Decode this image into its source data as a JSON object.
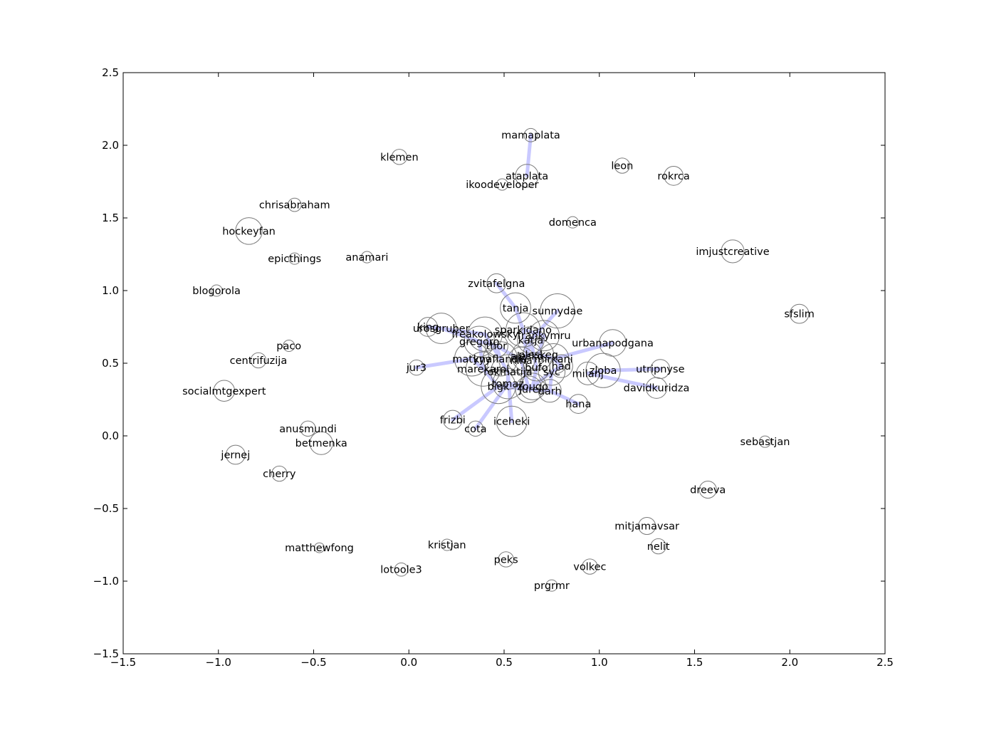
{
  "chart_data": {
    "type": "scatter",
    "title": "",
    "xlabel": "",
    "ylabel": "",
    "xlim": [
      -1.5,
      2.5
    ],
    "ylim": [
      -1.5,
      2.5
    ],
    "x_ticks": [
      -1.5,
      -1.0,
      -0.5,
      0.0,
      0.5,
      1.0,
      1.5,
      2.0,
      2.5
    ],
    "y_ticks": [
      -1.5,
      -1.0,
      -0.5,
      0.0,
      0.5,
      1.0,
      1.5,
      2.0,
      2.5
    ],
    "x_tick_labels": [
      "−1.5",
      "−1.0",
      "−0.5",
      "0.0",
      "0.5",
      "1.0",
      "1.5",
      "2.0",
      "2.5"
    ],
    "y_tick_labels": [
      "−1.5",
      "−1.0",
      "−0.5",
      "0.0",
      "0.5",
      "1.0",
      "1.5",
      "2.0",
      "2.5"
    ],
    "grid": false,
    "colors": {
      "node_stroke": "#7a7a7a",
      "edge": "#c9c9ff",
      "axes": "#000000",
      "background": "#ffffff"
    },
    "nodes": [
      {
        "label": "mamaplata",
        "x": 0.64,
        "y": 2.07,
        "size": 0.035
      },
      {
        "label": "klemen",
        "x": -0.05,
        "y": 1.92,
        "size": 0.04
      },
      {
        "label": "ataplata",
        "x": 0.62,
        "y": 1.79,
        "size": 0.06
      },
      {
        "label": "ikoodeveloper",
        "x": 0.49,
        "y": 1.73,
        "size": 0.03
      },
      {
        "label": "leon",
        "x": 1.12,
        "y": 1.86,
        "size": 0.04
      },
      {
        "label": "rokrca",
        "x": 1.39,
        "y": 1.79,
        "size": 0.05
      },
      {
        "label": "chrisabraham",
        "x": -0.6,
        "y": 1.59,
        "size": 0.035
      },
      {
        "label": "domenca",
        "x": 0.86,
        "y": 1.47,
        "size": 0.03
      },
      {
        "label": "hockeyfan",
        "x": -0.84,
        "y": 1.41,
        "size": 0.07
      },
      {
        "label": "epicthings",
        "x": -0.6,
        "y": 1.22,
        "size": 0.03
      },
      {
        "label": "anamari",
        "x": -0.22,
        "y": 1.23,
        "size": 0.03
      },
      {
        "label": "imjustcreative",
        "x": 1.7,
        "y": 1.27,
        "size": 0.06
      },
      {
        "label": "blogorola",
        "x": -1.01,
        "y": 1.0,
        "size": 0.03
      },
      {
        "label": "zvitafelgna",
        "x": 0.46,
        "y": 1.05,
        "size": 0.05
      },
      {
        "label": "tanja",
        "x": 0.56,
        "y": 0.88,
        "size": 0.08
      },
      {
        "label": "sunnydae",
        "x": 0.78,
        "y": 0.86,
        "size": 0.09
      },
      {
        "label": "sfslim",
        "x": 2.05,
        "y": 0.84,
        "size": 0.05
      },
      {
        "label": "king",
        "x": 0.1,
        "y": 0.75,
        "size": 0.05
      },
      {
        "label": "urosgruber",
        "x": 0.17,
        "y": 0.74,
        "size": 0.08
      },
      {
        "label": "sparkidano",
        "x": 0.6,
        "y": 0.73,
        "size": 0.09
      },
      {
        "label": "freakolowsky",
        "x": 0.4,
        "y": 0.7,
        "size": 0.09
      },
      {
        "label": "frankymru",
        "x": 0.71,
        "y": 0.69,
        "size": 0.08
      },
      {
        "label": "katja",
        "x": 0.64,
        "y": 0.66,
        "size": 0.07
      },
      {
        "label": "gregoro",
        "x": 0.37,
        "y": 0.65,
        "size": 0.08
      },
      {
        "label": "thor",
        "x": 0.46,
        "y": 0.62,
        "size": 0.06
      },
      {
        "label": "urbanapodgana",
        "x": 1.07,
        "y": 0.64,
        "size": 0.07
      },
      {
        "label": "paco",
        "x": -0.63,
        "y": 0.62,
        "size": 0.03
      },
      {
        "label": "alesko",
        "x": 0.62,
        "y": 0.55,
        "size": 0.08
      },
      {
        "label": "pleskeq",
        "x": 0.68,
        "y": 0.56,
        "size": 0.08
      },
      {
        "label": "knaflandia",
        "x": 0.48,
        "y": 0.53,
        "size": 0.09
      },
      {
        "label": "nina",
        "x": 0.59,
        "y": 0.52,
        "size": 0.07
      },
      {
        "label": "mirkani",
        "x": 0.76,
        "y": 0.53,
        "size": 0.08
      },
      {
        "label": "centrifuzija",
        "x": -0.79,
        "y": 0.52,
        "size": 0.04
      },
      {
        "label": "matyyy",
        "x": 0.33,
        "y": 0.53,
        "size": 0.09
      },
      {
        "label": "had",
        "x": 0.8,
        "y": 0.48,
        "size": 0.06
      },
      {
        "label": "bufo",
        "x": 0.67,
        "y": 0.47,
        "size": 0.07
      },
      {
        "label": "jur3",
        "x": 0.04,
        "y": 0.47,
        "size": 0.04
      },
      {
        "label": "marekarol",
        "x": 0.39,
        "y": 0.46,
        "size": 0.09
      },
      {
        "label": "rokmatija",
        "x": 0.52,
        "y": 0.44,
        "size": 0.09
      },
      {
        "label": "syc",
        "x": 0.75,
        "y": 0.44,
        "size": 0.07
      },
      {
        "label": "milanj",
        "x": 0.94,
        "y": 0.43,
        "size": 0.06
      },
      {
        "label": "zloba",
        "x": 1.02,
        "y": 0.45,
        "size": 0.09
      },
      {
        "label": "utripnyse",
        "x": 1.32,
        "y": 0.46,
        "size": 0.05
      },
      {
        "label": "tomaz",
        "x": 0.52,
        "y": 0.36,
        "size": 0.08
      },
      {
        "label": "zouqo",
        "x": 0.65,
        "y": 0.34,
        "size": 0.07
      },
      {
        "label": "bigk",
        "x": 0.47,
        "y": 0.34,
        "size": 0.09
      },
      {
        "label": "jure",
        "x": 0.63,
        "y": 0.32,
        "size": 0.07
      },
      {
        "label": "darh",
        "x": 0.74,
        "y": 0.31,
        "size": 0.06
      },
      {
        "label": "davidkuridza",
        "x": 1.3,
        "y": 0.33,
        "size": 0.055
      },
      {
        "label": "socialmtgexpert",
        "x": -0.97,
        "y": 0.31,
        "size": 0.055
      },
      {
        "label": "hana",
        "x": 0.89,
        "y": 0.22,
        "size": 0.05
      },
      {
        "label": "frizbi",
        "x": 0.23,
        "y": 0.11,
        "size": 0.05
      },
      {
        "label": "iceheki",
        "x": 0.54,
        "y": 0.1,
        "size": 0.08
      },
      {
        "label": "cota",
        "x": 0.35,
        "y": 0.05,
        "size": 0.04
      },
      {
        "label": "anusmundi",
        "x": -0.53,
        "y": 0.05,
        "size": 0.04
      },
      {
        "label": "betmenka",
        "x": -0.46,
        "y": -0.05,
        "size": 0.06
      },
      {
        "label": "sebastjan",
        "x": 1.87,
        "y": -0.04,
        "size": 0.03
      },
      {
        "label": "jernej",
        "x": -0.91,
        "y": -0.13,
        "size": 0.05
      },
      {
        "label": "cherry",
        "x": -0.68,
        "y": -0.26,
        "size": 0.04
      },
      {
        "label": "dreeva",
        "x": 1.57,
        "y": -0.37,
        "size": 0.045
      },
      {
        "label": "mitjamavsar",
        "x": 1.25,
        "y": -0.62,
        "size": 0.045
      },
      {
        "label": "nelit",
        "x": 1.31,
        "y": -0.76,
        "size": 0.04
      },
      {
        "label": "matthewfong",
        "x": -0.47,
        "y": -0.77,
        "size": 0.025
      },
      {
        "label": "kristjan",
        "x": 0.2,
        "y": -0.75,
        "size": 0.03
      },
      {
        "label": "peks",
        "x": 0.51,
        "y": -0.85,
        "size": 0.04
      },
      {
        "label": "volkec",
        "x": 0.95,
        "y": -0.9,
        "size": 0.04
      },
      {
        "label": "lotoole3",
        "x": -0.04,
        "y": -0.92,
        "size": 0.035
      },
      {
        "label": "prgrmr",
        "x": 0.75,
        "y": -1.03,
        "size": 0.03
      }
    ],
    "edges": [
      [
        "mamaplata",
        "ataplata"
      ],
      [
        "zvitafelgna",
        "tanja"
      ],
      [
        "tanja",
        "sparkidano"
      ],
      [
        "king",
        "freakolowsky"
      ],
      [
        "urosgruber",
        "gregoro"
      ],
      [
        "jur3",
        "matyyy"
      ],
      [
        "urbanapodgana",
        "mirkani"
      ],
      [
        "utripnyse",
        "zloba"
      ],
      [
        "davidkuridza",
        "milanj"
      ],
      [
        "hana",
        "darh"
      ],
      [
        "frizbi",
        "bigk"
      ],
      [
        "cota",
        "tomaz"
      ],
      [
        "iceheki",
        "rokmatija"
      ],
      [
        "sunnydae",
        "katja"
      ],
      [
        "freakolowsky",
        "knaflandia"
      ],
      [
        "gregoro",
        "marekarol"
      ],
      [
        "thor",
        "nina"
      ],
      [
        "sparkidano",
        "alesko"
      ],
      [
        "frankymru",
        "pleskeq"
      ],
      [
        "katja",
        "bufo"
      ],
      [
        "knaflandia",
        "rokmatija"
      ],
      [
        "matyyy",
        "marekarol"
      ],
      [
        "nina",
        "jure"
      ],
      [
        "mirkani",
        "had"
      ],
      [
        "had",
        "syc"
      ],
      [
        "bufo",
        "zouqo"
      ],
      [
        "marekarol",
        "bigk"
      ],
      [
        "rokmatija",
        "tomaz"
      ],
      [
        "syc",
        "darh"
      ],
      [
        "milanj",
        "zloba"
      ],
      [
        "tomaz",
        "zouqo"
      ],
      [
        "alesko",
        "nina"
      ],
      [
        "pleskeq",
        "mirkani"
      ],
      [
        "katja",
        "alesko"
      ],
      [
        "thor",
        "knaflandia"
      ],
      [
        "gregoro",
        "thor"
      ],
      [
        "sparkidano",
        "frankymru"
      ],
      [
        "jure",
        "darh"
      ],
      [
        "bigk",
        "jure"
      ],
      [
        "zouqo",
        "syc"
      ]
    ]
  }
}
